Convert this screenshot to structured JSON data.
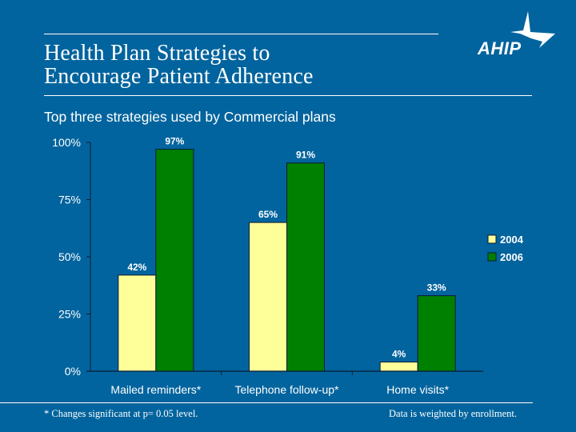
{
  "title_line1": "Health Plan Strategies to",
  "title_line2": "Encourage Patient Adherence",
  "subtitle": "Top three strategies used by Commercial plans",
  "logo_text": "AHIP",
  "logo_icon": "star-icon",
  "footnote_left": "* Changes significant at p= 0.05 level.",
  "footnote_right": "Data is weighted by enrollment.",
  "colors": {
    "background": "#02649e",
    "series_2004": "#ffff99",
    "series_2006": "#008000"
  },
  "chart_data": {
    "type": "bar",
    "title": "Top three strategies used by Commercial plans",
    "xlabel": "",
    "ylabel": "",
    "categories": [
      "Mailed reminders*",
      "Telephone follow-up*",
      "Home visits*"
    ],
    "series": [
      {
        "name": "2004",
        "values": [
          42,
          65,
          4
        ],
        "labels": [
          "42%",
          "65%",
          "4%"
        ]
      },
      {
        "name": "2006",
        "values": [
          97,
          91,
          33
        ],
        "labels": [
          "97%",
          "91%",
          "33%"
        ]
      }
    ],
    "ylim": [
      0,
      100
    ],
    "yticks": [
      0,
      25,
      50,
      75,
      100
    ],
    "ytick_labels": [
      "0%",
      "25%",
      "50%",
      "75%",
      "100%"
    ],
    "grid": false,
    "legend": {
      "position": "right",
      "entries": [
        "2004",
        "2006"
      ]
    }
  }
}
